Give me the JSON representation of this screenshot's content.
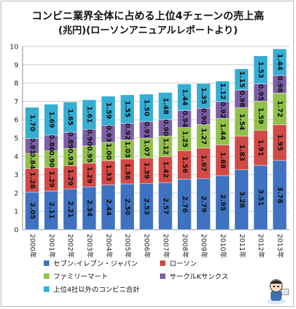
{
  "chart_data": {
    "type": "bar",
    "stacked": true,
    "title": "コンビニ業界全体に占める上位4チェーンの売上高",
    "subtitle": "(兆円)(ローソンアニュアルレポートより)",
    "categories": [
      "2000年",
      "2001年",
      "2002年",
      "2003年",
      "2004年",
      "2005年",
      "2006年",
      "2007年",
      "2008年",
      "2009年",
      "2010年",
      "2011年",
      "2012年",
      "2013年"
    ],
    "ylim": [
      0,
      10
    ],
    "yticks": [
      0,
      1,
      2,
      3,
      4,
      5,
      6,
      7,
      8,
      9,
      10
    ],
    "grid": true,
    "legend_position": "bottom",
    "series": [
      {
        "name": "セブン-イレブン・ジャパン",
        "color": "#3f72c0",
        "values": [
          2.05,
          2.11,
          2.21,
          2.34,
          2.44,
          2.5,
          2.53,
          2.57,
          2.76,
          2.79,
          2.95,
          3.28,
          3.51,
          3.78
        ]
      },
      {
        "name": "ローソン",
        "color": "#d24a46",
        "values": [
          1.28,
          1.29,
          1.29,
          1.29,
          1.33,
          1.36,
          1.39,
          1.42,
          1.56,
          1.67,
          1.68,
          1.83,
          1.91,
          1.95
        ]
      },
      {
        "name": "ファミリーマート",
        "color": "#92c04c",
        "values": [
          0.84,
          0.9,
          0.93,
          0.95,
          1.0,
          1.03,
          1.07,
          1.12,
          1.25,
          1.27,
          1.44,
          1.54,
          1.59,
          1.72
        ]
      },
      {
        "name": "サークルKサンクス",
        "color": "#7c5fa6",
        "values": [
          0.81,
          0.86,
          0.89,
          0.9,
          0.93,
          0.92,
          0.91,
          0.9,
          0.94,
          0.9,
          0.92,
          0.98,
          0.95,
          0.98
        ]
      },
      {
        "name": "上位4社以外のコンビニ合計",
        "color": "#36aed3",
        "values": [
          1.7,
          1.69,
          1.65,
          1.61,
          1.59,
          1.55,
          1.5,
          1.48,
          1.44,
          1.35,
          1.12,
          1.15,
          1.53,
          1.44
        ]
      }
    ]
  },
  "mascot_icon": "cartoon-mascot-icon"
}
